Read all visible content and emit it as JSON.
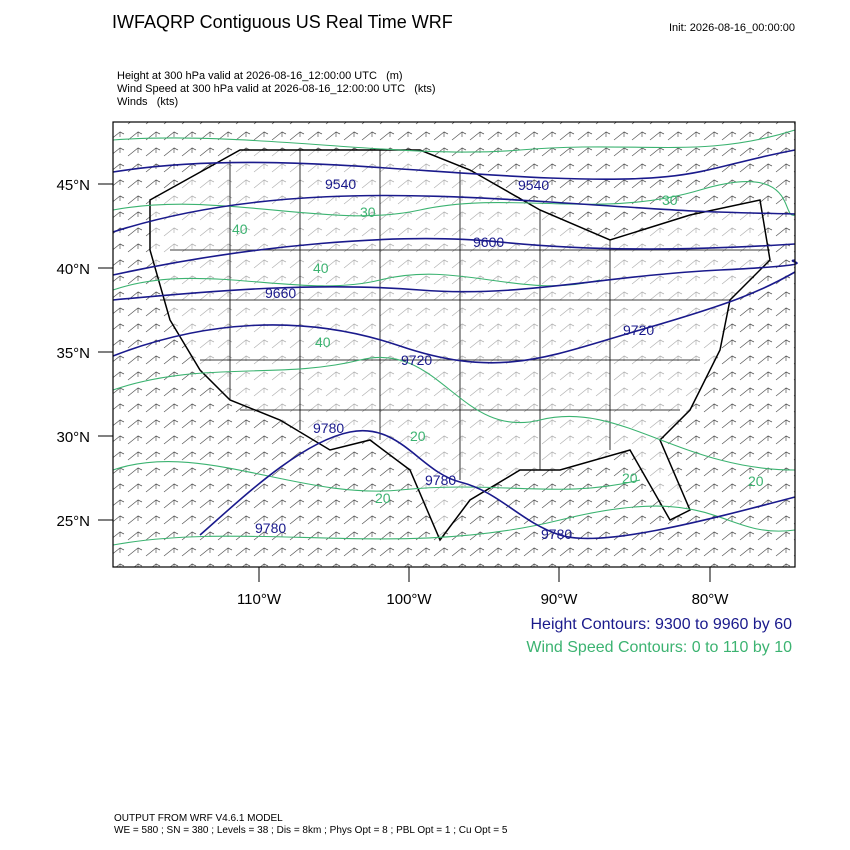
{
  "header": {
    "title": "IWFAQRP Contiguous US Real Time WRF",
    "init": "Init: 2026-08-16_00:00:00"
  },
  "fields": [
    "Height at 300 hPa valid at 2026-08-16_12:00:00 UTC   (m)",
    "Wind Speed at 300 hPa valid at 2026-08-16_12:00:00 UTC   (kts)",
    "Winds   (kts)"
  ],
  "map": {
    "lat_labels": [
      "45°N",
      "40°N",
      "35°N",
      "30°N",
      "25°N"
    ],
    "lon_labels": [
      "110°W",
      "100°W",
      "90°W",
      "80°W"
    ],
    "height_labels": [
      "9540",
      "9540",
      "9600",
      "9660",
      "9720",
      "9720",
      "9780",
      "9780",
      "9780",
      "9780"
    ],
    "wind_labels": [
      "40",
      "40",
      "40",
      "30",
      "30",
      "20",
      "20",
      "20",
      "20"
    ]
  },
  "legend": {
    "height": "Height Contours: 9300 to 9960 by 60",
    "wind": "Wind Speed Contours: 0 to 110 by 10"
  },
  "footer": [
    "OUTPUT FROM WRF V4.6.1 MODEL",
    "WE = 580 ; SN = 380 ; Levels = 38 ; Dis = 8km ; Phys Opt = 8 ; PBL Opt = 1 ; Cu Opt = 5"
  ]
}
